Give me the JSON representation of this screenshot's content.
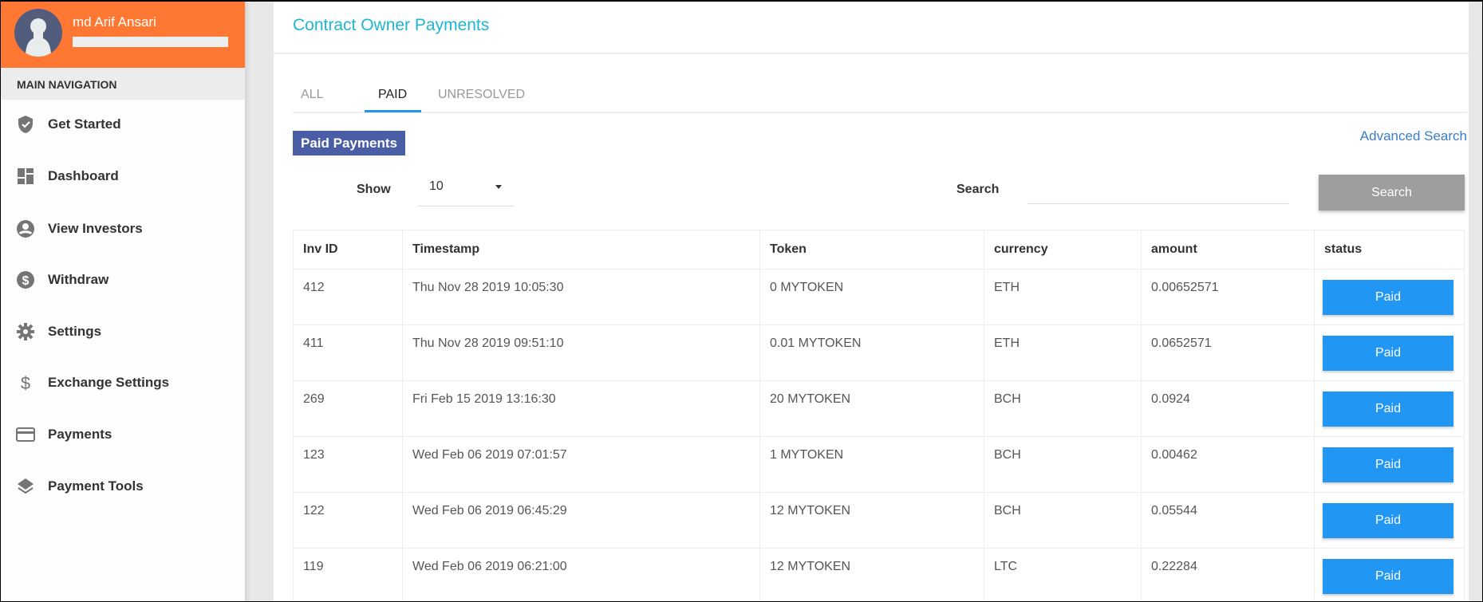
{
  "user": {
    "name": "md Arif Ansari"
  },
  "sidebar": {
    "heading": "MAIN NAVIGATION",
    "items": [
      {
        "label": "Get Started",
        "icon": "shield-check-icon"
      },
      {
        "label": "Dashboard",
        "icon": "dashboard-icon"
      },
      {
        "label": "View Investors",
        "icon": "account-circle-icon"
      },
      {
        "label": "Withdraw",
        "icon": "dollar-circle-icon"
      },
      {
        "label": "Settings",
        "icon": "gear-icon"
      },
      {
        "label": "Exchange Settings",
        "icon": "dollar-icon"
      },
      {
        "label": "Payments",
        "icon": "credit-card-icon"
      },
      {
        "label": "Payment Tools",
        "icon": "layers-icon"
      }
    ]
  },
  "header": {
    "title": "Contract Owner Payments"
  },
  "tabs": [
    {
      "label": "ALL"
    },
    {
      "label": "PAID",
      "active": true
    },
    {
      "label": "UNRESOLVED"
    }
  ],
  "section": {
    "title": "Paid Payments",
    "advanced_search": "Advanced Search"
  },
  "controls": {
    "show_label": "Show",
    "show_value": "10",
    "search_label": "Search",
    "search_value": "",
    "search_button": "Search"
  },
  "table": {
    "columns": [
      "Inv ID",
      "Timestamp",
      "Token",
      "currency",
      "amount",
      "status"
    ],
    "rows": [
      [
        "412",
        "Thu Nov 28 2019 10:05:30",
        "0 MYTOKEN",
        "ETH",
        "0.00652571",
        "Paid"
      ],
      [
        "411",
        "Thu Nov 28 2019 09:51:10",
        "0.01 MYTOKEN",
        "ETH",
        "0.0652571",
        "Paid"
      ],
      [
        "269",
        "Fri Feb 15 2019 13:16:30",
        "20 MYTOKEN",
        "BCH",
        "0.0924",
        "Paid"
      ],
      [
        "123",
        "Wed Feb 06 2019 07:01:57",
        "1 MYTOKEN",
        "BCH",
        "0.00462",
        "Paid"
      ],
      [
        "122",
        "Wed Feb 06 2019 06:45:29",
        "12 MYTOKEN",
        "BCH",
        "0.05544",
        "Paid"
      ],
      [
        "119",
        "Wed Feb 06 2019 06:21:00",
        "12 MYTOKEN",
        "LTC",
        "0.22284",
        "Paid"
      ]
    ]
  },
  "colors": {
    "user_header": "#fe7733",
    "accent": "#2196f3",
    "badge": "#4a5ea5",
    "title": "#1fb5d4",
    "search_button": "#9e9e9e"
  }
}
